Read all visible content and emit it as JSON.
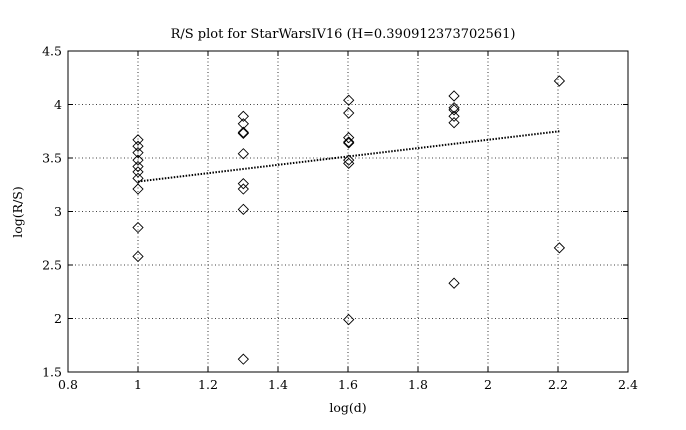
{
  "chart_data": {
    "type": "scatter",
    "title": "R/S plot for StarWarsIV16 (H=0.390912373702561)",
    "xlabel": "log(d)",
    "ylabel": "log(R/S)",
    "xlim": [
      0.8,
      2.4
    ],
    "ylim": [
      1.5,
      4.5
    ],
    "xticks": [
      0.8,
      1,
      1.2,
      1.4,
      1.6,
      1.8,
      2,
      2.2,
      2.4
    ],
    "yticks": [
      1.5,
      2,
      2.5,
      3,
      3.5,
      4,
      4.5
    ],
    "xtick_labels": [
      "0.8",
      "1",
      "1.2",
      "1.4",
      "1.6",
      "1.8",
      "2",
      "2.2",
      "2.4"
    ],
    "ytick_labels": [
      "1.5",
      "2",
      "2.5",
      "3",
      "3.5",
      "4",
      "4.5"
    ],
    "grid": true,
    "series": [
      {
        "marker": "diamond",
        "points": [
          [
            1.0,
            3.67
          ],
          [
            1.0,
            3.61
          ],
          [
            1.0,
            3.55
          ],
          [
            1.0,
            3.48
          ],
          [
            1.0,
            3.42
          ],
          [
            1.0,
            3.37
          ],
          [
            1.0,
            3.31
          ],
          [
            1.0,
            3.21
          ],
          [
            1.0,
            2.85
          ],
          [
            1.0,
            2.58
          ],
          [
            1.301,
            3.89
          ],
          [
            1.301,
            3.82
          ],
          [
            1.301,
            3.74
          ],
          [
            1.301,
            3.73
          ],
          [
            1.301,
            3.54
          ],
          [
            1.301,
            3.26
          ],
          [
            1.301,
            3.21
          ],
          [
            1.301,
            3.02
          ],
          [
            1.301,
            1.62
          ],
          [
            1.602,
            4.04
          ],
          [
            1.602,
            3.92
          ],
          [
            1.602,
            3.69
          ],
          [
            1.602,
            3.65
          ],
          [
            1.602,
            3.64
          ],
          [
            1.602,
            3.48
          ],
          [
            1.602,
            3.45
          ],
          [
            1.602,
            1.99
          ],
          [
            1.903,
            4.08
          ],
          [
            1.903,
            3.97
          ],
          [
            1.903,
            3.95
          ],
          [
            1.903,
            3.89
          ],
          [
            1.903,
            3.83
          ],
          [
            1.903,
            2.33
          ],
          [
            2.204,
            4.22
          ],
          [
            2.204,
            2.66
          ]
        ]
      },
      {
        "type": "line",
        "style": "dotted",
        "points": [
          [
            1.0,
            3.28
          ],
          [
            2.204,
            3.75
          ]
        ]
      }
    ]
  }
}
